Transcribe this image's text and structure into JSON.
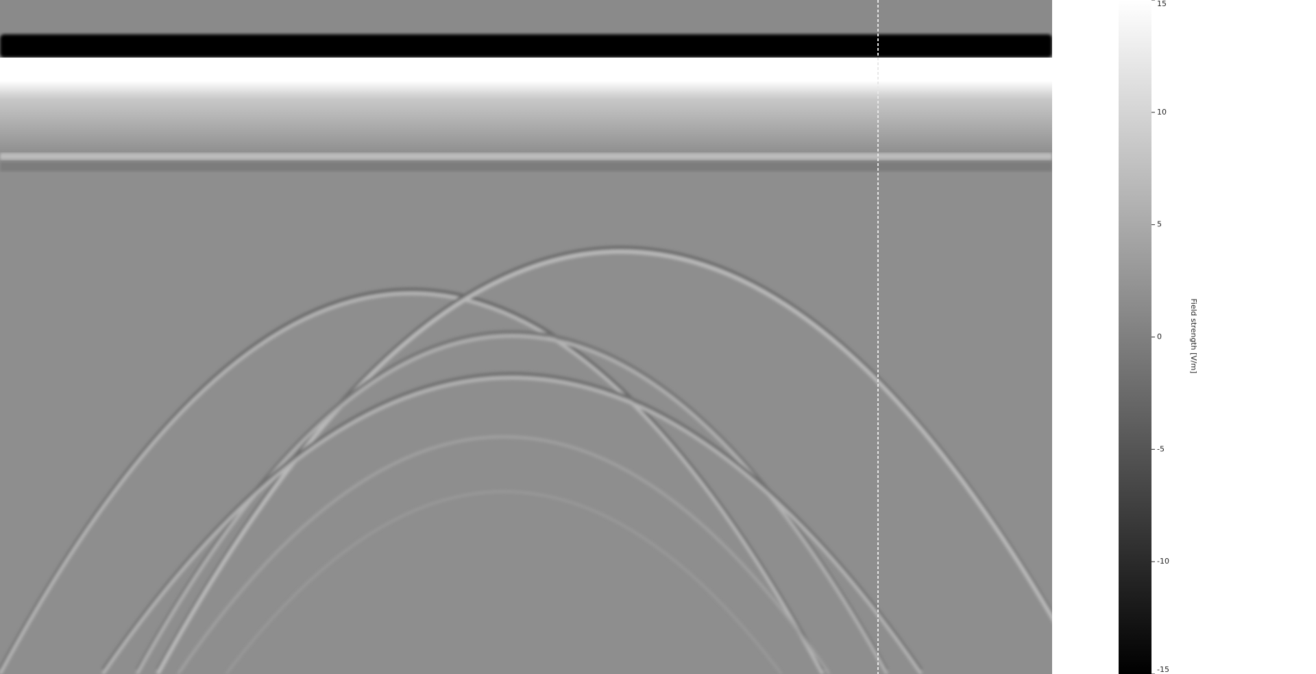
{
  "chart_data": {
    "type": "heatmap",
    "colorbar_label": "Field strength [V/m]",
    "clim": [
      -15,
      15
    ],
    "cticks": [
      -15,
      -10,
      -5,
      0,
      5,
      10,
      15
    ]
  }
}
